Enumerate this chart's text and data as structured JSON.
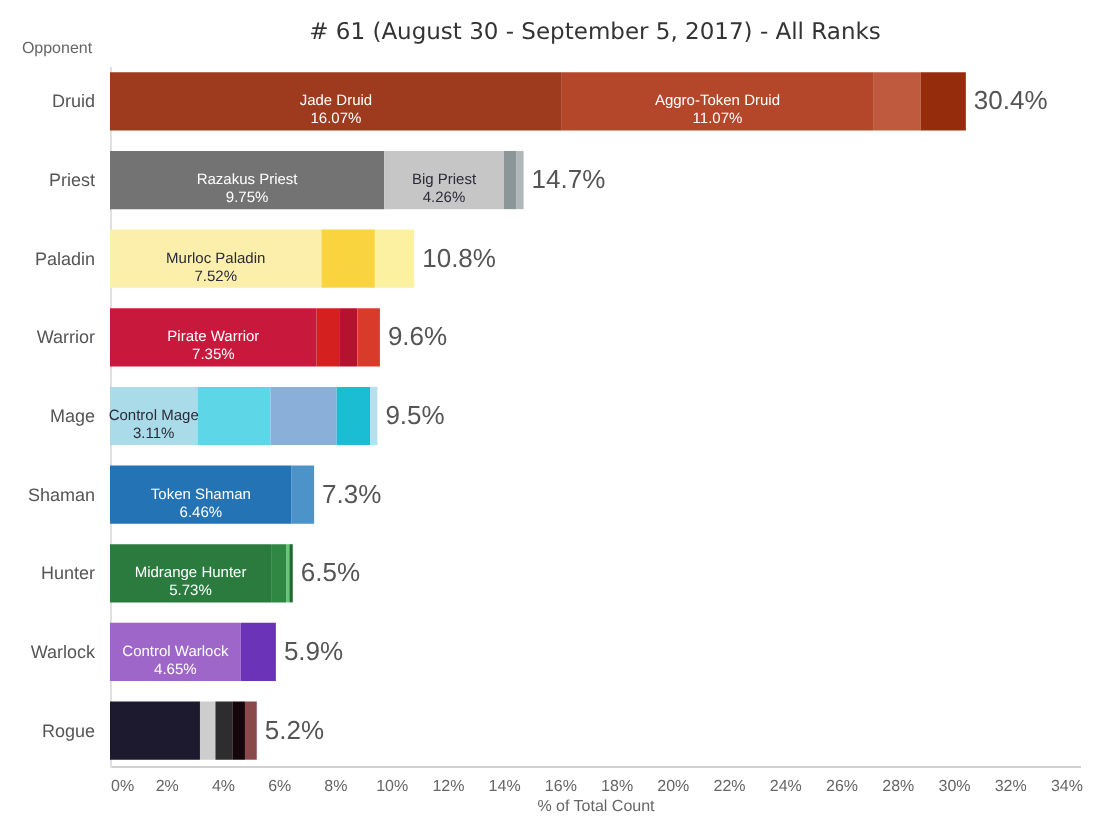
{
  "chart_data": {
    "type": "bar",
    "orientation": "horizontal",
    "stacked": true,
    "grid": false,
    "title": "# 61 (August 30 - September 5, 2017) - All Ranks",
    "ylabel": "Opponent",
    "xlabel": "% of Total Count",
    "categories": [
      "Druid",
      "Priest",
      "Paladin",
      "Warrior",
      "Mage",
      "Shaman",
      "Hunter",
      "Warlock",
      "Rogue"
    ],
    "series": [
      {
        "values": [
          16.07,
          9.75,
          7.52,
          7.35,
          3.11,
          6.46,
          5.73,
          4.65,
          3.2
        ],
        "colors": [
          "#9e3a1e",
          "#737373",
          "#fbefab",
          "#c8183c",
          "#a9dbe9",
          "#2373b5",
          "#2b7b3f",
          "#9e66c9",
          "#1d1a2f"
        ],
        "value_labels": [
          "Jade Druid\n16.07%",
          "Razakus Priest\n9.75%",
          "Murloc Paladin\n7.52%",
          "Pirate Warrior\n7.35%",
          "Control Mage\n3.11%",
          "Token Shaman\n6.46%",
          "Midrange Hunter\n5.73%",
          "Control Warlock\n4.65%",
          null
        ]
      },
      {
        "values": [
          11.07,
          4.26,
          1.9,
          0.8,
          2.6,
          0.8,
          0.55,
          1.25,
          0.55
        ],
        "colors": [
          "#b4472a",
          "#c6c6c6",
          "#fad43f",
          "#d4201f",
          "#5dd6e8",
          "#4b93c9",
          "#2f8744",
          "#6b33b7",
          "#cdcdcd"
        ],
        "value_labels": [
          "Aggro-Token Druid\n11.07%",
          "Big Priest\n4.26%",
          null,
          null,
          null,
          null,
          null,
          null,
          null
        ]
      },
      {
        "values": [
          1.7,
          0.45,
          1.4,
          0.65,
          2.35,
          null,
          0.1,
          null,
          0.6
        ],
        "colors": [
          "#c05a3f",
          "#8c9597",
          "#fcf1a0",
          "#b3132f",
          "#8ab0d9",
          null,
          "#62c874",
          null,
          "#2d2d2f"
        ]
      },
      {
        "values": [
          1.6,
          0.25,
          null,
          0.8,
          1.2,
          null,
          0.12,
          null,
          0.45
        ],
        "colors": [
          "#952c0c",
          "#b0b7b8",
          null,
          "#d93b2a",
          "#1bbdd3",
          null,
          "#1e6a31",
          null,
          "#14060a"
        ]
      },
      {
        "values": [
          null,
          null,
          null,
          null,
          0.25,
          null,
          null,
          null,
          0.42
        ],
        "colors": [
          null,
          null,
          null,
          null,
          "#b5e0ee",
          null,
          null,
          null,
          "#8a4a4c"
        ]
      }
    ],
    "totals": [
      "30.4%",
      "14.7%",
      "10.8%",
      "9.6%",
      "9.5%",
      "7.3%",
      "6.5%",
      "5.9%",
      "5.2%"
    ],
    "xlim": [
      0,
      34.5
    ],
    "xticks": [
      {
        "value": 0,
        "label": "0%"
      },
      {
        "value": 2,
        "label": "2%"
      },
      {
        "value": 4,
        "label": "4%"
      },
      {
        "value": 6,
        "label": "6%"
      },
      {
        "value": 8,
        "label": "8%"
      },
      {
        "value": 10,
        "label": "10%"
      },
      {
        "value": 12,
        "label": "12%"
      },
      {
        "value": 14,
        "label": "14%"
      },
      {
        "value": 16,
        "label": "16%"
      },
      {
        "value": 18,
        "label": "18%"
      },
      {
        "value": 20,
        "label": "20%"
      },
      {
        "value": 22,
        "label": "22%"
      },
      {
        "value": 24,
        "label": "24%"
      },
      {
        "value": 26,
        "label": "26%"
      },
      {
        "value": 28,
        "label": "28%"
      },
      {
        "value": 30,
        "label": "30%"
      },
      {
        "value": 32,
        "label": "32%"
      },
      {
        "value": 34,
        "label": "34%"
      }
    ]
  }
}
